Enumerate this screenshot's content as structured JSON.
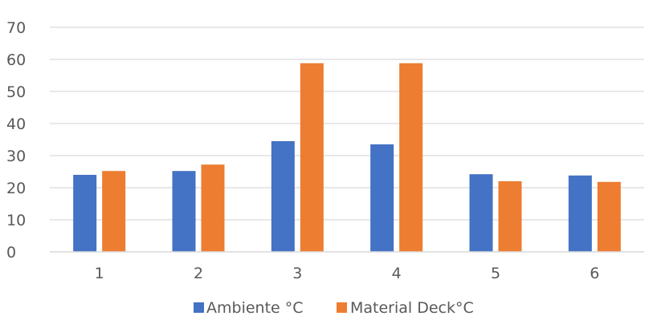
{
  "chart_data": {
    "type": "bar",
    "title": "",
    "xlabel": "",
    "ylabel": "",
    "categories": [
      "1",
      "2",
      "3",
      "4",
      "5",
      "6"
    ],
    "series": [
      {
        "name": "Ambiente °C",
        "color": "#4472C4",
        "values": [
          24,
          25.2,
          34.5,
          33.5,
          24.2,
          23.8
        ]
      },
      {
        "name": "Material Deck°C",
        "color": "#ED7D31",
        "values": [
          25.2,
          27.2,
          58.8,
          58.8,
          22,
          21.8
        ]
      }
    ],
    "ylim": [
      0,
      70
    ],
    "yticks": [
      "0",
      "10",
      "20",
      "30",
      "40",
      "50",
      "60",
      "70"
    ],
    "grid": true,
    "legend_position": "bottom"
  }
}
